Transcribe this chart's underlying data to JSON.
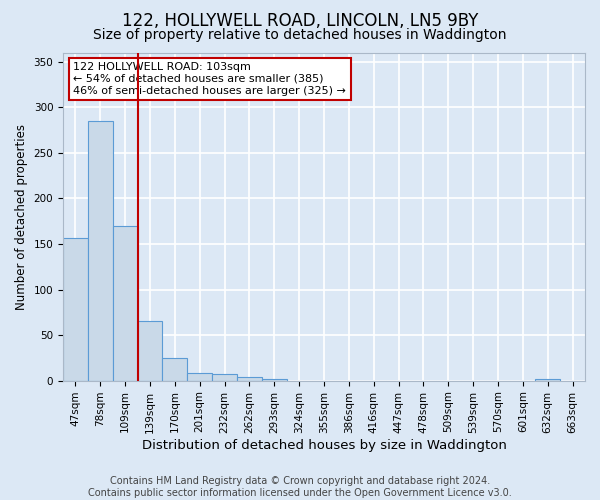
{
  "title": "122, HOLLYWELL ROAD, LINCOLN, LN5 9BY",
  "subtitle": "Size of property relative to detached houses in Waddington",
  "xlabel": "Distribution of detached houses by size in Waddington",
  "ylabel": "Number of detached properties",
  "categories": [
    "47sqm",
    "78sqm",
    "109sqm",
    "139sqm",
    "170sqm",
    "201sqm",
    "232sqm",
    "262sqm",
    "293sqm",
    "324sqm",
    "355sqm",
    "386sqm",
    "416sqm",
    "447sqm",
    "478sqm",
    "509sqm",
    "539sqm",
    "570sqm",
    "601sqm",
    "632sqm",
    "663sqm"
  ],
  "values": [
    157,
    285,
    170,
    65,
    25,
    9,
    7,
    4,
    2,
    0,
    0,
    0,
    0,
    0,
    0,
    0,
    0,
    0,
    0,
    2,
    0
  ],
  "bar_color": "#c9d9e8",
  "bar_edge_color": "#5b9bd5",
  "vline_color": "#c00000",
  "vline_x": 2.5,
  "annotation_text": "122 HOLLYWELL ROAD: 103sqm\n← 54% of detached houses are smaller (385)\n46% of semi-detached houses are larger (325) →",
  "annotation_box_color": "white",
  "annotation_box_edge_color": "#c00000",
  "ylim": [
    0,
    360
  ],
  "yticks": [
    0,
    50,
    100,
    150,
    200,
    250,
    300,
    350
  ],
  "footer_text": "Contains HM Land Registry data © Crown copyright and database right 2024.\nContains public sector information licensed under the Open Government Licence v3.0.",
  "background_color": "#dce8f5",
  "plot_bg_color": "#dce8f5",
  "grid_color": "white",
  "title_fontsize": 12,
  "subtitle_fontsize": 10,
  "ylabel_fontsize": 8.5,
  "xlabel_fontsize": 9.5,
  "tick_fontsize": 7.5,
  "footer_fontsize": 7,
  "annotation_fontsize": 8
}
